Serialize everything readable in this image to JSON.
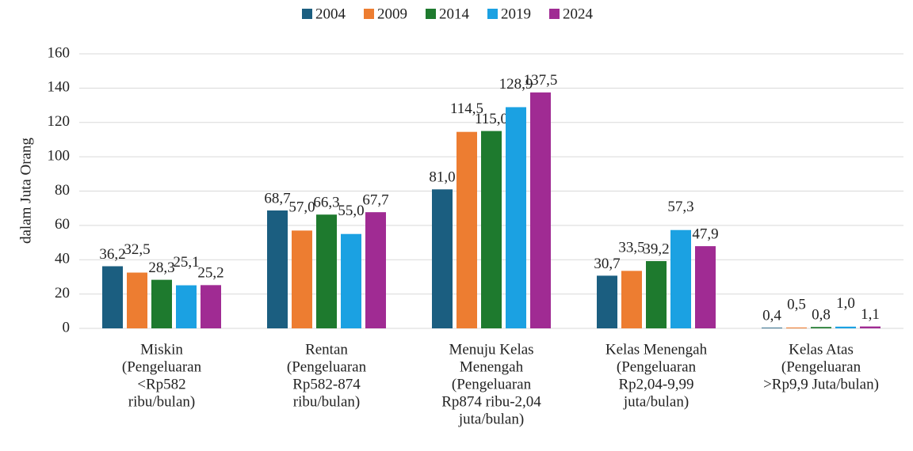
{
  "chart_data": {
    "type": "bar",
    "y_label": "dalam Juta Orang",
    "categories": [
      [
        "Miskin",
        "(Pengeluaran",
        "<Rp582",
        "ribu/bulan)"
      ],
      [
        "Rentan",
        "(Pengeluaran",
        "Rp582-874",
        "ribu/bulan)"
      ],
      [
        "Menuju Kelas",
        "Menengah",
        "(Pengeluaran",
        "Rp874 ribu-2,04",
        "juta/bulan)"
      ],
      [
        "Kelas Menengah",
        "(Pengeluaran",
        "Rp2,04-9,99",
        "juta/bulan)"
      ],
      [
        "Kelas Atas",
        "(Pengeluaran",
        ">Rp9,9 Juta/bulan)"
      ]
    ],
    "series": [
      {
        "name": "2004",
        "color": "#1b5e80",
        "values": [
          36.2,
          68.7,
          81.0,
          30.7,
          0.4
        ],
        "value_labels": [
          "36,2",
          "68,7",
          "81,0",
          "30,7",
          "0,4"
        ]
      },
      {
        "name": "2009",
        "color": "#ed7d31",
        "values": [
          32.5,
          57.0,
          114.5,
          33.5,
          0.5
        ],
        "value_labels": [
          "32,5",
          "57,0",
          "114,5",
          "33,5",
          "0,5"
        ]
      },
      {
        "name": "2014",
        "color": "#1e7a2e",
        "values": [
          28.3,
          66.3,
          115.0,
          39.2,
          0.8
        ],
        "value_labels": [
          "28,3",
          "66,3",
          "115,0",
          "39,2",
          "0,8"
        ]
      },
      {
        "name": "2019",
        "color": "#1ba1e2",
        "values": [
          25.1,
          55.0,
          128.9,
          57.3,
          1.0
        ],
        "value_labels": [
          "25,1",
          "55,0",
          "128,9",
          "57,3",
          "1,0"
        ]
      },
      {
        "name": "2024",
        "color": "#a02b93",
        "values": [
          25.2,
          67.7,
          137.5,
          47.9,
          1.1
        ],
        "value_labels": [
          "25,2",
          "67,7",
          "137,5",
          "47,9",
          "1,1"
        ]
      }
    ],
    "ylim": [
      0,
      160
    ],
    "yticks": [
      0,
      20,
      40,
      60,
      80,
      100,
      120,
      140,
      160
    ],
    "grid": true,
    "legend": "top"
  }
}
